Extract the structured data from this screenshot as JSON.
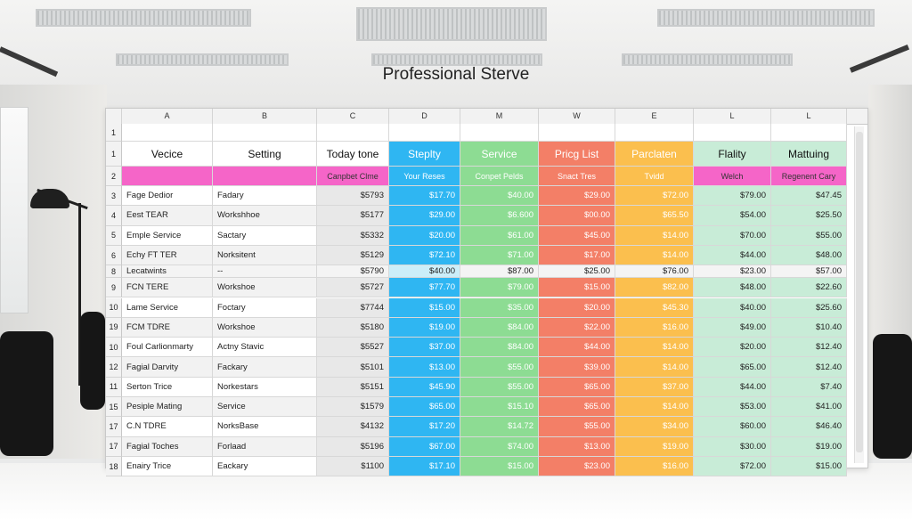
{
  "title": "Professional Sterve",
  "colors": {
    "pink": "#f565c8",
    "blue": "#2fb6f2",
    "green": "#8ddc93",
    "salmon": "#f37f67",
    "orange": "#fbbf4e",
    "mint": "#c8ecd7",
    "gray_row": "#e8e8e8"
  },
  "column_letters": [
    "A",
    "B",
    "C",
    "D",
    "M",
    "W",
    "E",
    "L",
    "L"
  ],
  "header_row": {
    "num": "1",
    "labels": [
      "Vecice",
      "Setting",
      "Today tone",
      "Steplty",
      "Service",
      "Pricg List",
      "Parclaten",
      "Flality",
      "Mattuing"
    ]
  },
  "subheader_row": {
    "num": "2",
    "labels": [
      "",
      "",
      "Canpbet Clme",
      "Your Reses",
      "Conpet Pelds",
      "Snact Tres",
      "Tvidd",
      "Welch",
      "Regenent Cary"
    ]
  },
  "rows": [
    {
      "num": "3",
      "cells": [
        "Fage Dedior",
        "Fadary",
        "$5793",
        "$17.70",
        "$40.00",
        "$29.00",
        "$72.00",
        "$79.00",
        "$47.45"
      ]
    },
    {
      "num": "4",
      "cells": [
        "Eest TEAR",
        "Workshhoe",
        "$5177",
        "$29.00",
        "$6.600",
        "$00.00",
        "$65.50",
        "$54.00",
        "$25.50"
      ]
    },
    {
      "num": "5",
      "cells": [
        "Emple Service",
        "Sactary",
        "$5332",
        "$20.00",
        "$61.00",
        "$45.00",
        "$14.00",
        "$70.00",
        "$55.00"
      ]
    },
    {
      "num": "6",
      "cells": [
        "Echy FT TER",
        "Norksitent",
        "$5129",
        "$72.10",
        "$71.00",
        "$17.00",
        "$14.00",
        "$44.00",
        "$48.00"
      ]
    },
    {
      "num": "8",
      "cells": [
        "Lecatwints",
        "--",
        "$5790",
        "$40.00",
        "$87.00",
        "$25.00",
        "$76.00",
        "$23.00",
        "$57.00"
      ]
    },
    {
      "num": "9",
      "cells": [
        "FCN TERE",
        "Workshoe",
        "$5727",
        "$77.70",
        "$79.00",
        "$15.00",
        "$82.00",
        "$48.00",
        "$22.60"
      ]
    },
    {
      "num": "10",
      "cells": [
        "Lame Service",
        "Foctary",
        "$7744",
        "$15.00",
        "$35.00",
        "$20.00",
        "$45.30",
        "$40.00",
        "$25.60"
      ]
    },
    {
      "num": "19",
      "cells": [
        "FCM TDRE",
        "Workshoe",
        "$5180",
        "$19.00",
        "$84.00",
        "$22.00",
        "$16.00",
        "$49.00",
        "$10.40"
      ]
    },
    {
      "num": "10",
      "cells": [
        "Foul Carlionmarty",
        "Actny Stavic",
        "$5527",
        "$37.00",
        "$84.00",
        "$44.00",
        "$14.00",
        "$20.00",
        "$12.40"
      ]
    },
    {
      "num": "12",
      "cells": [
        "Fagial Darvity",
        "Fackary",
        "$5101",
        "$13.00",
        "$55.00",
        "$39.00",
        "$14.00",
        "$65.00",
        "$12.40"
      ]
    },
    {
      "num": "11",
      "cells": [
        "Serton Trice",
        "Norkestars",
        "$5151",
        "$45.90",
        "$55.00",
        "$65.00",
        "$37.00",
        "$44.00",
        "$7.40"
      ]
    },
    {
      "num": "15",
      "cells": [
        "Pesiple Mating",
        "Service",
        "$1579",
        "$65.00",
        "$15.10",
        "$65.00",
        "$14.00",
        "$53.00",
        "$41.00"
      ]
    },
    {
      "num": "17",
      "cells": [
        "C.N TDRE",
        "NorksBase",
        "$4132",
        "$17.20",
        "$14.72",
        "$55.00",
        "$34.00",
        "$60.00",
        "$46.40"
      ]
    },
    {
      "num": "17",
      "cells": [
        "Fagial Toches",
        "Forlaad",
        "$5196",
        "$67.00",
        "$74.00",
        "$13.00",
        "$19.00",
        "$30.00",
        "$19.00"
      ]
    },
    {
      "num": "18",
      "cells": [
        "Enairy Trice",
        "Eackary",
        "$1100",
        "$17.10",
        "$15.00",
        "$23.00",
        "$16.00",
        "$72.00",
        "$15.00"
      ]
    }
  ]
}
